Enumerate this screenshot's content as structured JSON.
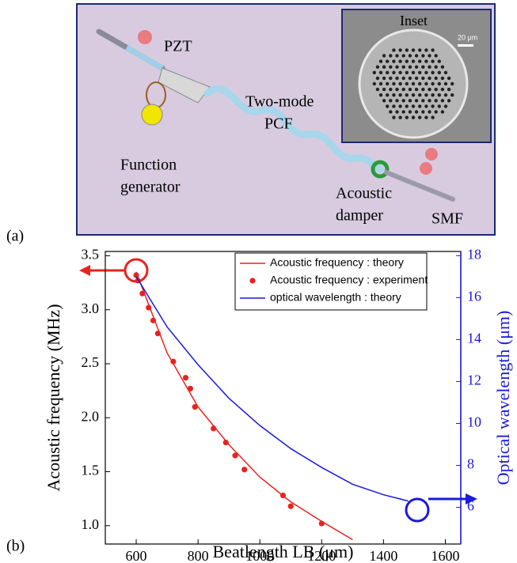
{
  "panel_labels": [
    "(a)",
    "(b)"
  ],
  "diagram": {
    "pzt": [
      "PZT"
    ],
    "fiber": [
      "Two-mode",
      "PCF"
    ],
    "generator": [
      "Function",
      "generator"
    ],
    "damper": [
      "Acoustic",
      "damper"
    ],
    "smf": [
      "SMF"
    ],
    "inset": [
      "Inset"
    ],
    "scale": "20 μm"
  },
  "chart_data": {
    "type": "line",
    "x_label": "Beatlength LB (μm)",
    "y_label": "Acoustic frequency (MHz)",
    "y2_label": "Optical wavelength (μm)",
    "xlim": [
      500,
      1650
    ],
    "ylim": [
      0.83,
      3.54
    ],
    "y2lim": [
      4.25,
      18.2
    ],
    "xticks": [
      600,
      800,
      1000,
      1200,
      1400,
      1600
    ],
    "yticks": [
      {
        "value": 1,
        "label": "1.0"
      },
      1.5,
      {
        "value": 2,
        "label": "2.0"
      },
      2.5,
      {
        "value": 3,
        "label": "3.0"
      },
      3.5
    ],
    "y2ticks": [
      6,
      8,
      10,
      12,
      14,
      16,
      18
    ],
    "legend": "top-right",
    "series": [
      {
        "name": "Acoustic frequency : theory",
        "color": "#e8231f",
        "mode": "line",
        "x": [
          600,
          700,
          800,
          900,
          1000,
          1100,
          1200,
          1300
        ],
        "values": [
          3.35,
          2.6,
          2.1,
          1.75,
          1.45,
          1.22,
          1.04,
          0.87
        ]
      },
      {
        "name": "Acoustic frequency : experiment",
        "color": "#e8231f",
        "mode": "markers",
        "x": [
          600,
          605,
          620,
          640,
          655,
          670,
          720,
          760,
          775,
          790,
          850,
          890,
          920,
          950,
          1075,
          1100,
          1200
        ],
        "values": [
          3.32,
          3.27,
          3.15,
          3.02,
          2.9,
          2.78,
          2.52,
          2.37,
          2.27,
          2.1,
          1.9,
          1.77,
          1.65,
          1.52,
          1.28,
          1.18,
          1.02
        ]
      },
      {
        "name": "optical wavelength : theory",
        "color": "#1a1adc",
        "mode": "line",
        "axis": "y2",
        "x": [
          600,
          700,
          800,
          900,
          1000,
          1100,
          1200,
          1300,
          1400,
          1480
        ],
        "values": [
          17.0,
          14.6,
          12.8,
          11.2,
          9.9,
          8.8,
          7.9,
          7.1,
          6.6,
          6.3
        ]
      }
    ]
  }
}
